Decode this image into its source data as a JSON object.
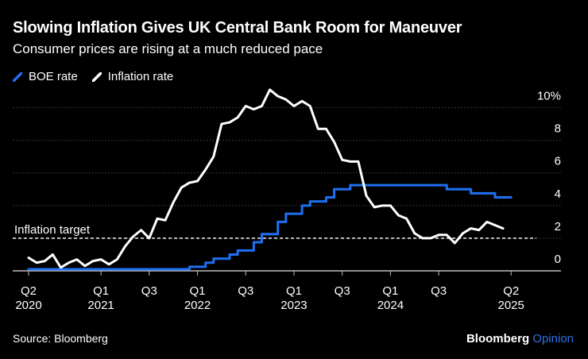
{
  "header": {
    "title": "Slowing Inflation Gives UK Central Bank Room for Maneuver",
    "subtitle": "Consumer prices are rising at a much reduced pace"
  },
  "legend": {
    "items": [
      {
        "label": "BOE rate",
        "color": "#1f6ff2"
      },
      {
        "label": "Inflation rate",
        "color": "#ffffff"
      }
    ]
  },
  "footer": {
    "source": "Source: Bloomberg",
    "brand_main": "Bloomberg",
    "brand_sub": "Opinion"
  },
  "chart_data": {
    "type": "line",
    "x_start": "2020-04",
    "x_frequency": "monthly",
    "ylim": [
      0,
      11
    ],
    "y_ticks": [
      {
        "value": 0,
        "label": "0"
      },
      {
        "value": 2,
        "label": "2"
      },
      {
        "value": 4,
        "label": "4"
      },
      {
        "value": 6,
        "label": "6"
      },
      {
        "value": 8,
        "label": "8"
      },
      {
        "value": 10,
        "label": "10%"
      }
    ],
    "x_ticks": [
      {
        "month_index": 0,
        "line1": "Q2",
        "line2": "2020"
      },
      {
        "month_index": 9,
        "line1": "Q1",
        "line2": "2021"
      },
      {
        "month_index": 15,
        "line1": "Q3",
        "line2": ""
      },
      {
        "month_index": 21,
        "line1": "Q1",
        "line2": "2022"
      },
      {
        "month_index": 27,
        "line1": "Q3",
        "line2": ""
      },
      {
        "month_index": 33,
        "line1": "Q1",
        "line2": "2023"
      },
      {
        "month_index": 39,
        "line1": "Q3",
        "line2": ""
      },
      {
        "month_index": 45,
        "line1": "Q1",
        "line2": "2024"
      },
      {
        "month_index": 51,
        "line1": "Q3",
        "line2": ""
      },
      {
        "month_index": 60,
        "line1": "Q2",
        "line2": "2025"
      }
    ],
    "reference_line": {
      "value": 2,
      "label": "Inflation target",
      "style": "dashed"
    },
    "series": [
      {
        "name": "BOE rate",
        "color": "#1f6ff2",
        "step": true,
        "values": [
          0.1,
          0.1,
          0.1,
          0.1,
          0.1,
          0.1,
          0.1,
          0.1,
          0.1,
          0.1,
          0.1,
          0.1,
          0.1,
          0.1,
          0.1,
          0.1,
          0.1,
          0.1,
          0.1,
          0.1,
          0.25,
          0.25,
          0.5,
          0.75,
          0.75,
          1.0,
          1.25,
          1.25,
          1.75,
          2.25,
          2.25,
          3.0,
          3.5,
          3.5,
          4.0,
          4.25,
          4.25,
          4.5,
          5.0,
          5.0,
          5.25,
          5.25,
          5.25,
          5.25,
          5.25,
          5.25,
          5.25,
          5.25,
          5.25,
          5.25,
          5.25,
          5.25,
          5.0,
          5.0,
          5.0,
          4.75,
          4.75,
          4.75,
          4.5,
          4.5,
          4.5
        ]
      },
      {
        "name": "Inflation rate",
        "color": "#ffffff",
        "step": false,
        "values": [
          0.8,
          0.5,
          0.6,
          1.0,
          0.2,
          0.5,
          0.7,
          0.3,
          0.6,
          0.7,
          0.4,
          0.7,
          1.5,
          2.1,
          2.5,
          2.0,
          3.2,
          3.1,
          4.2,
          5.1,
          5.4,
          5.5,
          6.2,
          7.0,
          9.0,
          9.1,
          9.4,
          10.1,
          9.9,
          10.1,
          11.1,
          10.7,
          10.5,
          10.1,
          10.4,
          10.1,
          8.7,
          8.7,
          7.9,
          6.8,
          6.7,
          6.7,
          4.6,
          3.9,
          4.0,
          4.0,
          3.4,
          3.2,
          2.3,
          2.0,
          2.0,
          2.2,
          2.2,
          1.7,
          2.3,
          2.6,
          2.5,
          3.0,
          2.8,
          2.6
        ]
      }
    ]
  }
}
